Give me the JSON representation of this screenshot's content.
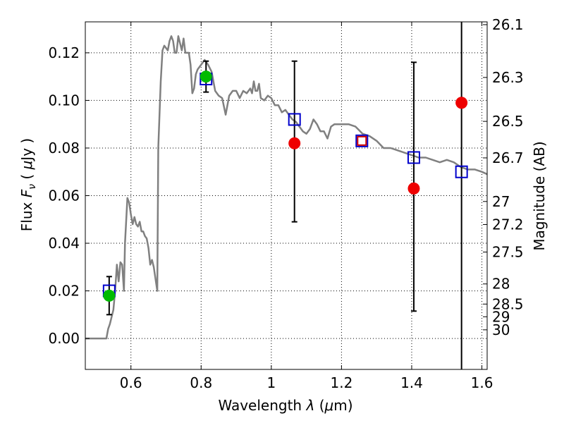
{
  "chart_data": {
    "type": "scatter",
    "xlabel": "Wavelength",
    "xlabel_symbol": "λ",
    "xlabel_unit_open": "(",
    "xlabel_unit_mu": "μ",
    "xlabel_unit_rest": "m)",
    "ylabel": "Flux",
    "ylabel_symbol": "F",
    "ylabel_subscript": "ν",
    "ylabel_unit_open": "(",
    "ylabel_unit_mu": "μ",
    "ylabel_unit_rest": "Jy )",
    "y2label": "Magnitude (AB)",
    "xlim": [
      0.47,
      1.615
    ],
    "ylim": [
      -0.013,
      0.133
    ],
    "grid": true,
    "x_ticks": [
      0.6,
      0.8,
      1.0,
      1.2,
      1.4,
      1.6
    ],
    "x_tick_labels": [
      "0.6",
      "0.8",
      "1",
      "1.2",
      "1.4",
      "1.6"
    ],
    "y_ticks": [
      0.0,
      0.02,
      0.04,
      0.06,
      0.08,
      0.1,
      0.12
    ],
    "y_tick_labels": [
      "0.00",
      "0.02",
      "0.04",
      "0.06",
      "0.08",
      "0.10",
      "0.12"
    ],
    "mag_ticks": [
      26.1,
      26.3,
      26.5,
      26.7,
      27,
      27.2,
      27.5,
      28,
      28.5,
      29,
      30
    ],
    "mag_tick_labels": [
      "26.1",
      "26.3",
      "26.5",
      "26.7",
      "27",
      "27.2",
      "27.5",
      "28",
      "28.5",
      "29",
      "30"
    ],
    "colors": {
      "sed": "#808080",
      "model_box": "#0000cc",
      "highlight_box": "#cc0000",
      "green_point": "#00bb00",
      "red_point": "#ee0000",
      "errorbar": "#000000"
    },
    "sed": [
      [
        0.47,
        0.0
      ],
      [
        0.53,
        0.0
      ],
      [
        0.535,
        0.004
      ],
      [
        0.54,
        0.006
      ],
      [
        0.545,
        0.009
      ],
      [
        0.55,
        0.012
      ],
      [
        0.555,
        0.02
      ],
      [
        0.56,
        0.031
      ],
      [
        0.565,
        0.024
      ],
      [
        0.57,
        0.032
      ],
      [
        0.575,
        0.031
      ],
      [
        0.58,
        0.02
      ],
      [
        0.583,
        0.04
      ],
      [
        0.59,
        0.059
      ],
      [
        0.595,
        0.057
      ],
      [
        0.6,
        0.052
      ],
      [
        0.605,
        0.048
      ],
      [
        0.61,
        0.051
      ],
      [
        0.615,
        0.048
      ],
      [
        0.62,
        0.047
      ],
      [
        0.625,
        0.049
      ],
      [
        0.63,
        0.045
      ],
      [
        0.635,
        0.045
      ],
      [
        0.64,
        0.043
      ],
      [
        0.645,
        0.042
      ],
      [
        0.65,
        0.038
      ],
      [
        0.655,
        0.031
      ],
      [
        0.66,
        0.033
      ],
      [
        0.665,
        0.03
      ],
      [
        0.67,
        0.025
      ],
      [
        0.675,
        0.02
      ],
      [
        0.678,
        0.08
      ],
      [
        0.685,
        0.108
      ],
      [
        0.69,
        0.121
      ],
      [
        0.695,
        0.123
      ],
      [
        0.7,
        0.122
      ],
      [
        0.705,
        0.121
      ],
      [
        0.71,
        0.125
      ],
      [
        0.715,
        0.127
      ],
      [
        0.72,
        0.125
      ],
      [
        0.725,
        0.12
      ],
      [
        0.73,
        0.12
      ],
      [
        0.735,
        0.127
      ],
      [
        0.74,
        0.124
      ],
      [
        0.745,
        0.121
      ],
      [
        0.75,
        0.126
      ],
      [
        0.755,
        0.12
      ],
      [
        0.76,
        0.12
      ],
      [
        0.765,
        0.12
      ],
      [
        0.77,
        0.115
      ],
      [
        0.775,
        0.103
      ],
      [
        0.78,
        0.105
      ],
      [
        0.785,
        0.111
      ],
      [
        0.79,
        0.113
      ],
      [
        0.8,
        0.115
      ],
      [
        0.81,
        0.117
      ],
      [
        0.82,
        0.115
      ],
      [
        0.83,
        0.112
      ],
      [
        0.84,
        0.104
      ],
      [
        0.85,
        0.102
      ],
      [
        0.86,
        0.101
      ],
      [
        0.87,
        0.094
      ],
      [
        0.88,
        0.102
      ],
      [
        0.89,
        0.104
      ],
      [
        0.9,
        0.104
      ],
      [
        0.91,
        0.101
      ],
      [
        0.92,
        0.104
      ],
      [
        0.93,
        0.103
      ],
      [
        0.94,
        0.105
      ],
      [
        0.945,
        0.103
      ],
      [
        0.95,
        0.108
      ],
      [
        0.955,
        0.104
      ],
      [
        0.96,
        0.104
      ],
      [
        0.965,
        0.107
      ],
      [
        0.97,
        0.101
      ],
      [
        0.98,
        0.1
      ],
      [
        0.99,
        0.102
      ],
      [
        1.0,
        0.101
      ],
      [
        1.01,
        0.098
      ],
      [
        1.02,
        0.098
      ],
      [
        1.03,
        0.095
      ],
      [
        1.04,
        0.096
      ],
      [
        1.05,
        0.094
      ],
      [
        1.06,
        0.092
      ],
      [
        1.07,
        0.091
      ],
      [
        1.08,
        0.089
      ],
      [
        1.09,
        0.087
      ],
      [
        1.1,
        0.086
      ],
      [
        1.11,
        0.088
      ],
      [
        1.12,
        0.092
      ],
      [
        1.13,
        0.09
      ],
      [
        1.14,
        0.087
      ],
      [
        1.15,
        0.087
      ],
      [
        1.16,
        0.084
      ],
      [
        1.17,
        0.089
      ],
      [
        1.18,
        0.09
      ],
      [
        1.2,
        0.09
      ],
      [
        1.22,
        0.09
      ],
      [
        1.24,
        0.089
      ],
      [
        1.26,
        0.086
      ],
      [
        1.28,
        0.085
      ],
      [
        1.3,
        0.083
      ],
      [
        1.32,
        0.08
      ],
      [
        1.34,
        0.08
      ],
      [
        1.36,
        0.079
      ],
      [
        1.38,
        0.078
      ],
      [
        1.4,
        0.077
      ],
      [
        1.42,
        0.076
      ],
      [
        1.44,
        0.076
      ],
      [
        1.46,
        0.075
      ],
      [
        1.48,
        0.074
      ],
      [
        1.5,
        0.075
      ],
      [
        1.52,
        0.074
      ],
      [
        1.54,
        0.072
      ],
      [
        1.56,
        0.071
      ],
      [
        1.58,
        0.071
      ],
      [
        1.6,
        0.07
      ],
      [
        1.615,
        0.069
      ]
    ],
    "model_points": [
      {
        "x": 0.538,
        "y": 0.02,
        "color": "#0000cc"
      },
      {
        "x": 0.814,
        "y": 0.109,
        "color": "#0000cc"
      },
      {
        "x": 1.066,
        "y": 0.092,
        "color": "#0000cc"
      },
      {
        "x": 1.258,
        "y": 0.083,
        "color": "#0000cc"
      },
      {
        "x": 1.258,
        "y": 0.083,
        "color": "#cc0000",
        "small": true
      },
      {
        "x": 1.406,
        "y": 0.076,
        "color": "#0000cc"
      },
      {
        "x": 1.542,
        "y": 0.07,
        "color": "#0000cc"
      }
    ],
    "observed_points": [
      {
        "x": 0.538,
        "y": 0.018,
        "yerr_low": 0.01,
        "yerr_high": 0.026,
        "color": "#00bb00"
      },
      {
        "x": 0.814,
        "y": 0.11,
        "yerr_low": 0.1035,
        "yerr_high": 0.1165,
        "color": "#00bb00"
      },
      {
        "x": 1.066,
        "y": 0.082,
        "yerr_low": 0.049,
        "yerr_high": 0.1165,
        "color": "#ee0000"
      },
      {
        "x": 1.406,
        "y": 0.063,
        "yerr_low": 0.0115,
        "yerr_high": 0.116,
        "color": "#ee0000"
      },
      {
        "x": 1.542,
        "y": 0.099,
        "yerr_low": -0.013,
        "yerr_high": 0.133,
        "color": "#ee0000"
      }
    ]
  }
}
